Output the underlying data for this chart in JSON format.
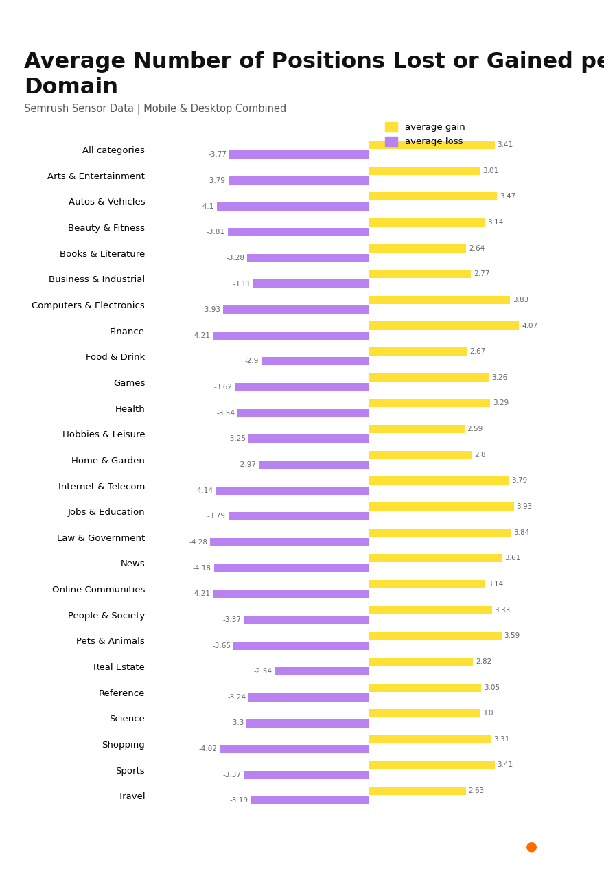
{
  "title": "Average Number of Positions Lost or Gained per\nDomain",
  "subtitle": "Semrush Sensor Data | Mobile & Desktop Combined",
  "categories": [
    "All categories",
    "Arts & Entertainment",
    "Autos & Vehicles",
    "Beauty & Fitness",
    "Books & Literature",
    "Business & Industrial",
    "Computers & Electronics",
    "Finance",
    "Food & Drink",
    "Games",
    "Health",
    "Hobbies & Leisure",
    "Home & Garden",
    "Internet & Telecom",
    "Jobs & Education",
    "Law & Government",
    "News",
    "Online Communities",
    "People & Society",
    "Pets & Animals",
    "Real Estate",
    "Reference",
    "Science",
    "Shopping",
    "Sports",
    "Travel"
  ],
  "gains": [
    3.41,
    3.01,
    3.47,
    3.14,
    2.64,
    2.77,
    3.83,
    4.07,
    2.67,
    3.26,
    3.29,
    2.59,
    2.8,
    3.79,
    3.93,
    3.84,
    3.61,
    3.14,
    3.33,
    3.59,
    2.82,
    3.05,
    3.0,
    3.31,
    3.41,
    2.63
  ],
  "losses": [
    -3.77,
    -3.79,
    -4.1,
    -3.81,
    -3.28,
    -3.11,
    -3.93,
    -4.21,
    -2.9,
    -3.62,
    -3.54,
    -3.25,
    -2.97,
    -4.14,
    -3.79,
    -4.28,
    -4.18,
    -4.21,
    -3.37,
    -3.65,
    -2.54,
    -3.24,
    -3.3,
    -4.02,
    -3.37,
    -3.19
  ],
  "gain_color": "#FFE135",
  "loss_color": "#B882F0",
  "background_color": "#FFFFFF",
  "footer_bg": "#3D2277",
  "footer_text_color": "#FFFFFF",
  "title_fontsize": 23,
  "subtitle_fontsize": 10.5,
  "bar_label_fontsize": 7.5,
  "cat_label_fontsize": 9.5,
  "bar_height": 0.32,
  "bar_gap": 0.06,
  "legend_gain": "average gain",
  "legend_loss": "average loss",
  "xlim_left": -5.8,
  "xlim_right": 6.2
}
